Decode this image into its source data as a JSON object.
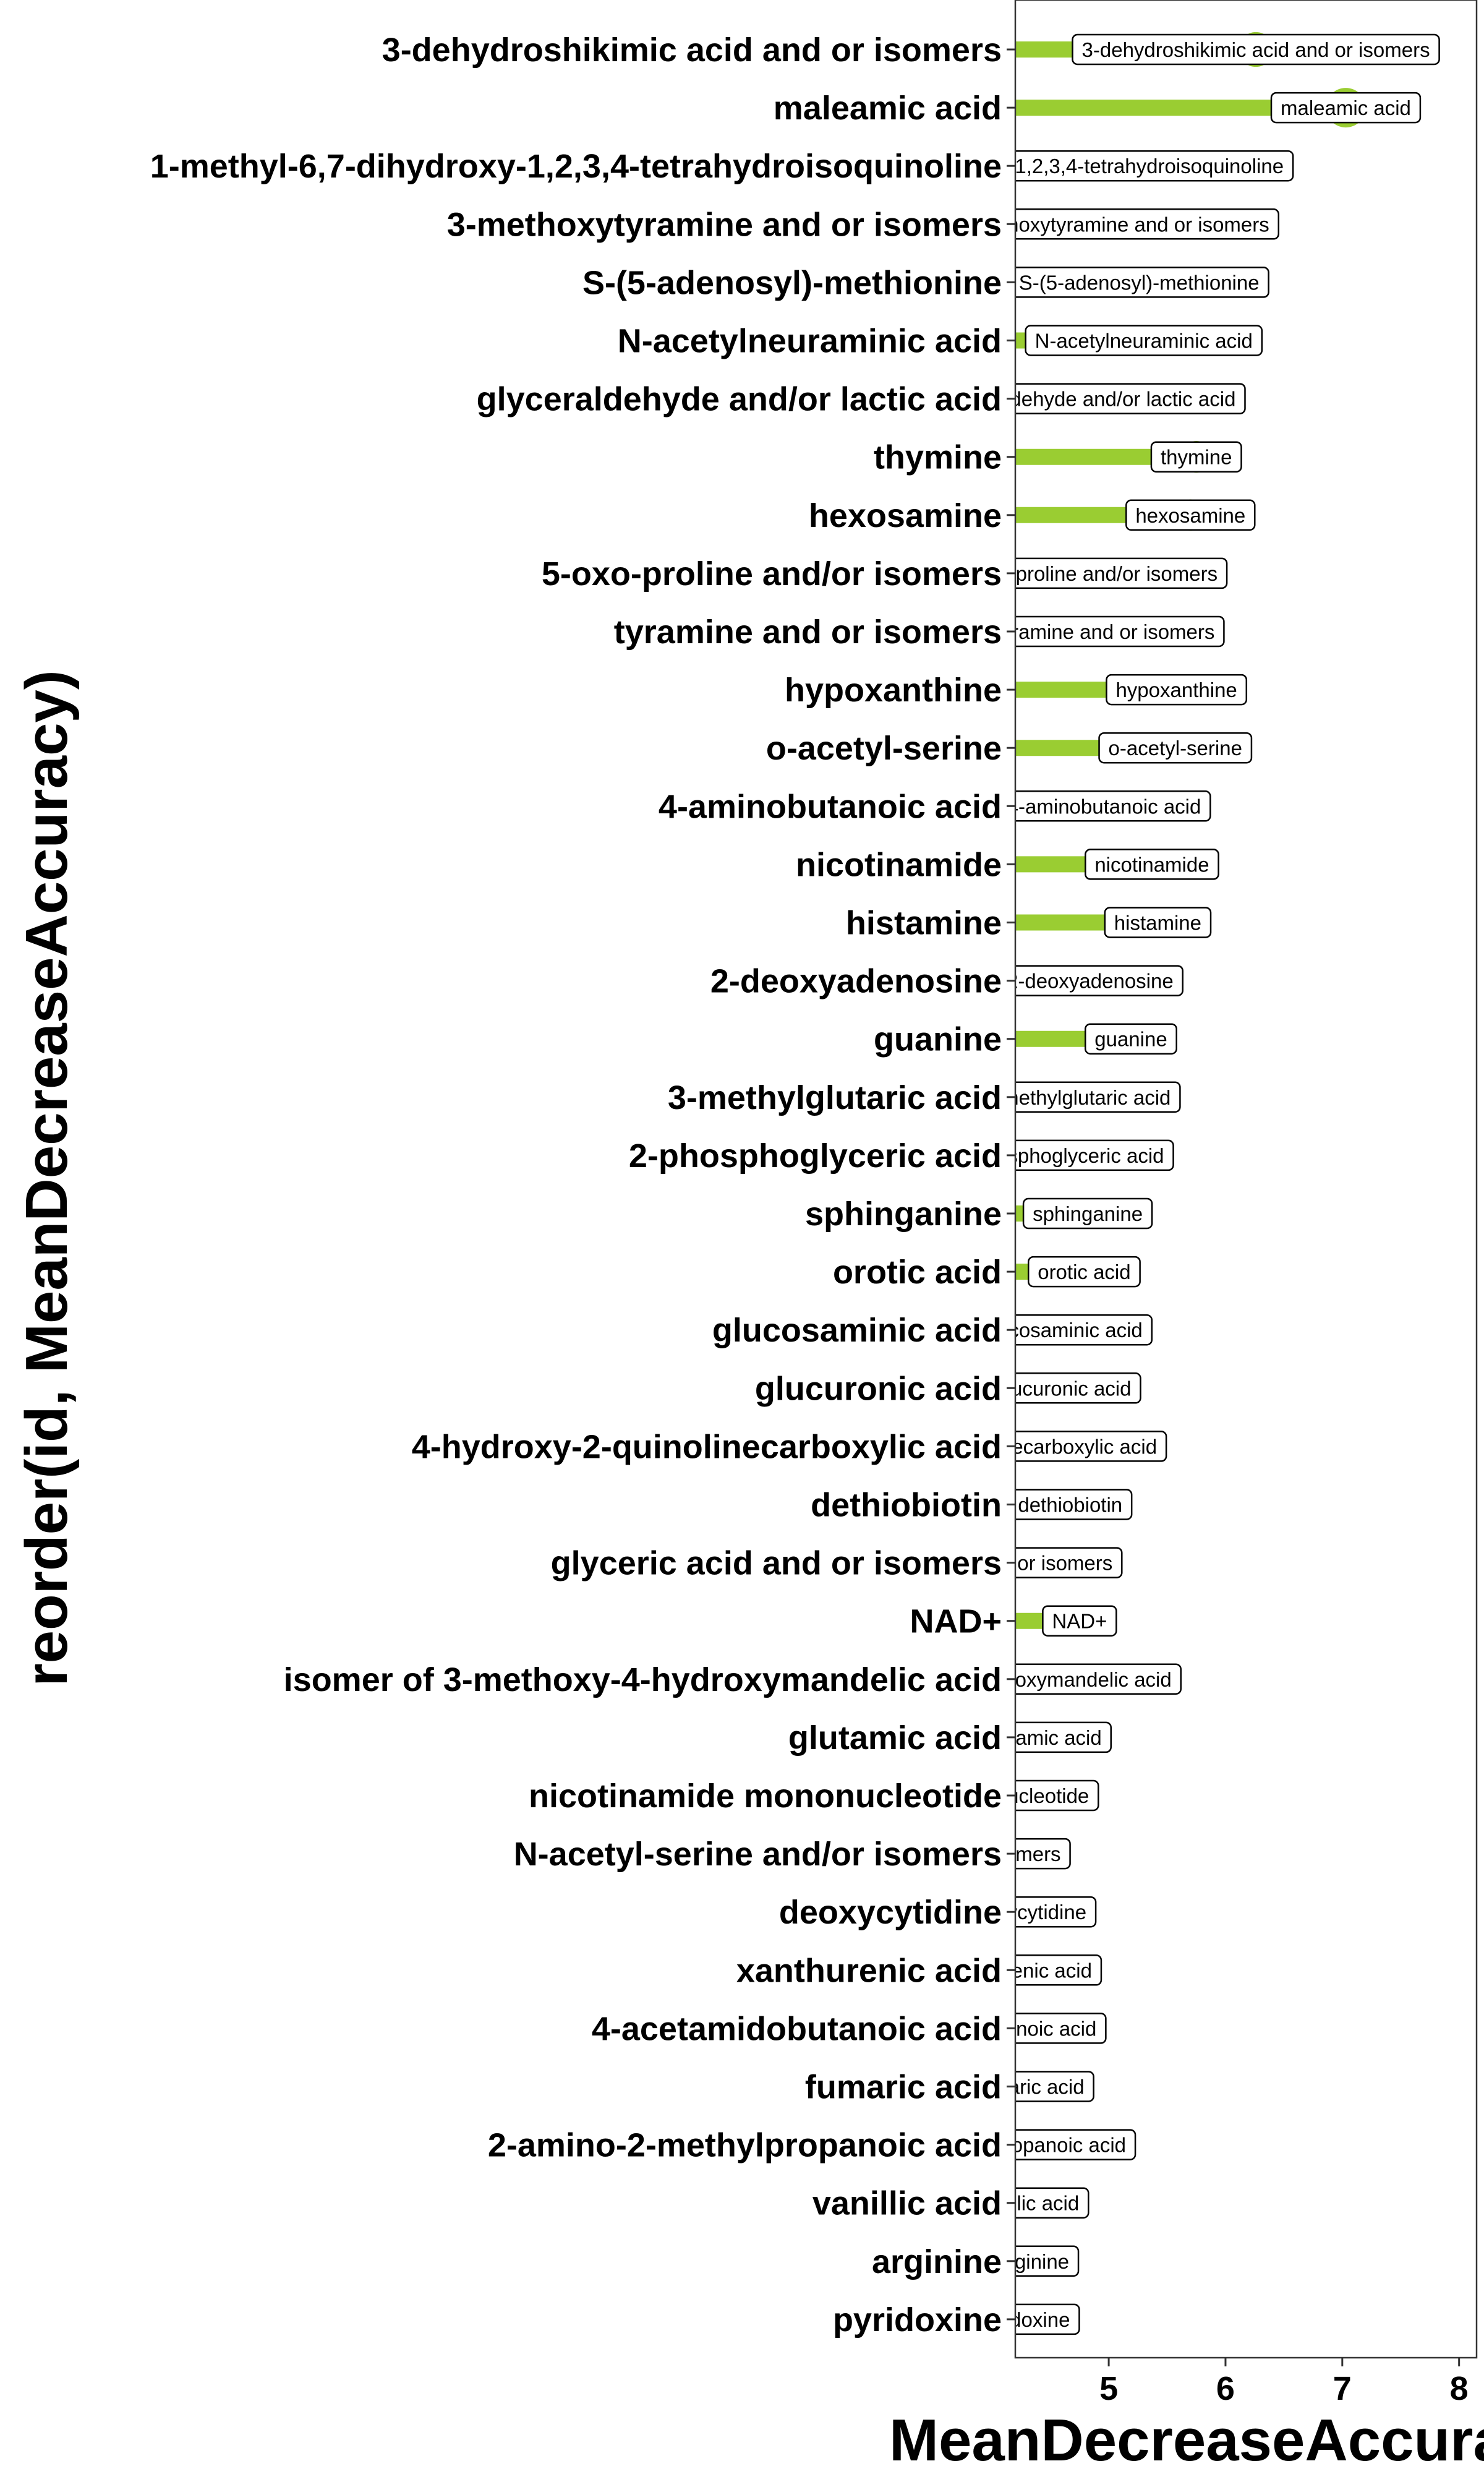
{
  "chart_data": {
    "type": "lollipop",
    "xlabel": "MeanDecreaseAccuracy",
    "ylabel": "reorder(id, MeanDecreaseAccuracy)",
    "xlim": [
      4.2,
      8.15
    ],
    "xticks": [
      5,
      6,
      7,
      8
    ],
    "grid": false,
    "legend": "none",
    "bar_color": "#9acd32",
    "categories": [
      "3-dehydroshikimic acid and or isomers",
      "maleamic acid",
      "1-methyl-6,7-dihydroxy-1,2,3,4-tetrahydroisoquinoline",
      "3-methoxytyramine and or isomers",
      "S-(5-adenosyl)-methionine",
      "N-acetylneuraminic acid",
      "glyceraldehyde and/or lactic acid",
      "thymine",
      "hexosamine",
      "5-oxo-proline and/or isomers",
      "tyramine and or isomers",
      "hypoxanthine",
      "o-acetyl-serine",
      "4-aminobutanoic acid",
      "nicotinamide",
      "histamine",
      "2-deoxyadenosine",
      "guanine",
      "3-methylglutaric acid",
      "2-phosphoglyceric acid",
      "sphinganine",
      "orotic acid",
      "glucosaminic acid",
      "glucuronic acid",
      "4-hydroxy-2-quinolinecarboxylic acid",
      "dethiobiotin",
      "glyceric acid and or isomers",
      "NAD+",
      "isomer of 3-methoxy-4-hydroxymandelic acid",
      "glutamic acid",
      "nicotinamide mononucleotide",
      "N-acetyl-serine and/or isomers",
      "deoxycytidine",
      "xanthurenic acid",
      "4-acetamidobutanoic acid",
      "fumaric acid",
      "2-amino-2-methylpropanoic acid",
      "vanillic acid",
      "arginine",
      "pyridoxine"
    ],
    "values": [
      6.26,
      7.03,
      4.43,
      5.03,
      5.26,
      5.3,
      4.82,
      5.75,
      5.7,
      4.82,
      4.97,
      5.58,
      5.57,
      4.96,
      5.37,
      5.42,
      4.84,
      5.19,
      4.73,
      4.58,
      4.82,
      4.79,
      4.6,
      4.61,
      4.0,
      4.67,
      3.95,
      4.75,
      3.8,
      4.43,
      3.7,
      3.4,
      4.28,
      4.22,
      3.9,
      4.32,
      3.9,
      4.3,
      4.35,
      4.27
    ]
  }
}
